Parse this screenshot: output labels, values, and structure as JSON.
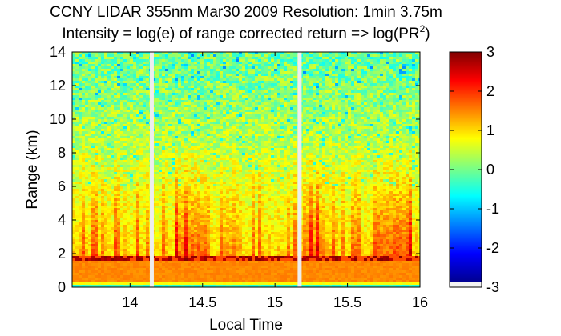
{
  "chart_data": {
    "type": "heatmap",
    "title_line1": "CCNY LIDAR 355nm Mar30 2009 Resolution: 1min 3.75m",
    "title_line2_main": "Intensity = log(e) of range corrected return => log(PR",
    "title_line2_sup": "2",
    "title_line2_end": ")",
    "xlabel": "Local Time",
    "ylabel": "Range (km)",
    "xlim": [
      13.6,
      16
    ],
    "ylim": [
      0,
      14
    ],
    "x_ticks": [
      "14",
      "14.5",
      "15",
      "15.5",
      "16"
    ],
    "x_tick_values": [
      14,
      14.5,
      15,
      15.5,
      16
    ],
    "y_ticks": [
      "0",
      "2",
      "4",
      "6",
      "8",
      "10",
      "12",
      "14"
    ],
    "y_tick_values": [
      0,
      2,
      4,
      6,
      8,
      10,
      12,
      14
    ],
    "colorbar": {
      "min": -3,
      "max": 3,
      "ticks": [
        "3",
        "2",
        "1",
        "0",
        "-1",
        "-2",
        "-3"
      ],
      "tick_values": [
        3,
        2,
        1,
        0,
        -1,
        -2,
        -3
      ],
      "colormap": "jet"
    },
    "data_gaps_local_time": [
      14.15,
      15.17
    ],
    "cloud_layer_km": 1.7,
    "grid": false
  }
}
